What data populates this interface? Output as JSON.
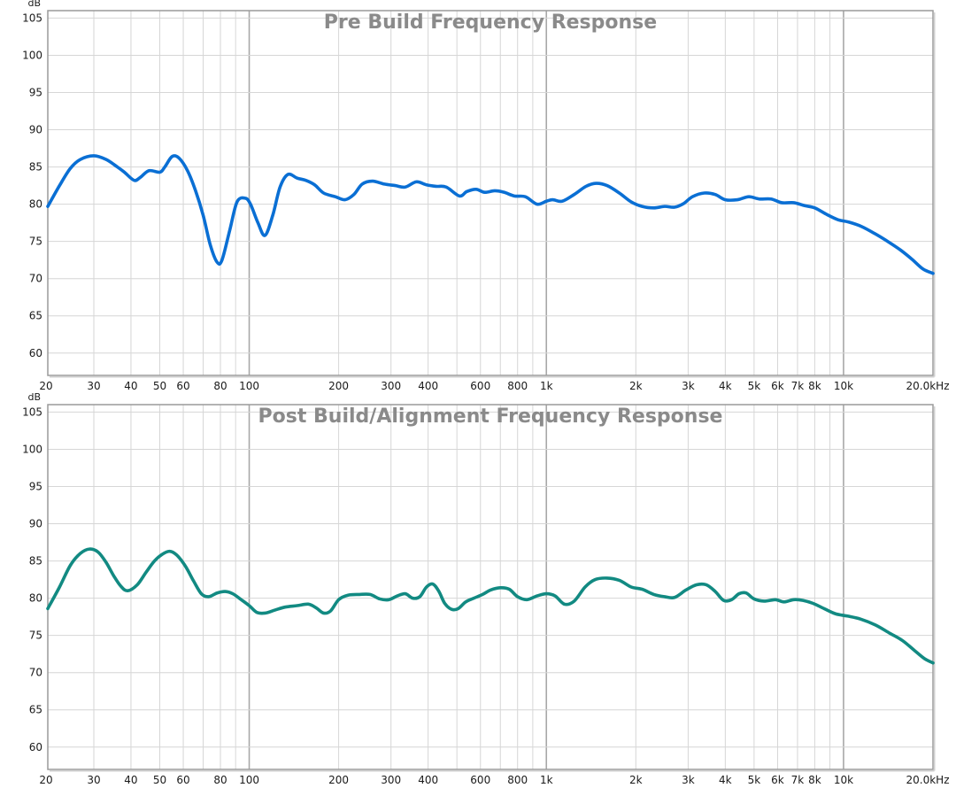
{
  "chart_data": [
    {
      "type": "line",
      "title": "Pre Build Frequency Response",
      "y_unit": "dB",
      "x_scale": "log",
      "xlim": [
        21,
        20000
      ],
      "ylim": [
        57,
        106
      ],
      "grid": true,
      "y_ticks": [
        60,
        65,
        70,
        75,
        80,
        85,
        90,
        95,
        100,
        105
      ],
      "x_ticks": [
        {
          "value": 20,
          "label": "20"
        },
        {
          "value": 30,
          "label": "30"
        },
        {
          "value": 40,
          "label": "40"
        },
        {
          "value": 50,
          "label": "50"
        },
        {
          "value": 60,
          "label": "60"
        },
        {
          "value": 80,
          "label": "80"
        },
        {
          "value": 100,
          "label": "100"
        },
        {
          "value": 200,
          "label": "200"
        },
        {
          "value": 300,
          "label": "300"
        },
        {
          "value": 400,
          "label": "400"
        },
        {
          "value": 600,
          "label": "600"
        },
        {
          "value": 800,
          "label": "800"
        },
        {
          "value": 1000,
          "label": "1k"
        },
        {
          "value": 2000,
          "label": "2k"
        },
        {
          "value": 3000,
          "label": "3k"
        },
        {
          "value": 4000,
          "label": "4k"
        },
        {
          "value": 5000,
          "label": "5k"
        },
        {
          "value": 6000,
          "label": "6k"
        },
        {
          "value": 7000,
          "label": "7k"
        },
        {
          "value": 8000,
          "label": "8k"
        },
        {
          "value": 10000,
          "label": "10k"
        },
        {
          "value": 20000,
          "label": "20.0kHz"
        }
      ],
      "series": [
        {
          "color": "#0a6fd4",
          "points": [
            [
              21,
              79.7
            ],
            [
              23,
              82.5
            ],
            [
              25,
              84.8
            ],
            [
              27,
              86.0
            ],
            [
              30,
              86.5
            ],
            [
              33,
              86.0
            ],
            [
              36,
              85.0
            ],
            [
              38,
              84.3
            ],
            [
              41,
              83.2
            ],
            [
              43,
              83.6
            ],
            [
              46,
              84.5
            ],
            [
              50,
              84.3
            ],
            [
              52,
              85.0
            ],
            [
              55,
              86.4
            ],
            [
              58,
              86.2
            ],
            [
              62,
              84.5
            ],
            [
              66,
              81.8
            ],
            [
              70,
              78.5
            ],
            [
              74,
              74.5
            ],
            [
              78,
              72.2
            ],
            [
              81,
              72.5
            ],
            [
              86,
              76.5
            ],
            [
              91,
              80.3
            ],
            [
              97,
              80.8
            ],
            [
              101,
              80.0
            ],
            [
              107,
              77.5
            ],
            [
              113,
              75.8
            ],
            [
              120,
              78.5
            ],
            [
              127,
              82.3
            ],
            [
              135,
              84.0
            ],
            [
              145,
              83.5
            ],
            [
              155,
              83.2
            ],
            [
              166,
              82.6
            ],
            [
              178,
              81.5
            ],
            [
              195,
              81.0
            ],
            [
              210,
              80.6
            ],
            [
              225,
              81.3
            ],
            [
              240,
              82.7
            ],
            [
              260,
              83.1
            ],
            [
              285,
              82.7
            ],
            [
              310,
              82.5
            ],
            [
              335,
              82.3
            ],
            [
              365,
              83.0
            ],
            [
              395,
              82.6
            ],
            [
              425,
              82.4
            ],
            [
              460,
              82.3
            ],
            [
              510,
              81.1
            ],
            [
              540,
              81.7
            ],
            [
              580,
              82.0
            ],
            [
              620,
              81.6
            ],
            [
              670,
              81.8
            ],
            [
              720,
              81.6
            ],
            [
              780,
              81.1
            ],
            [
              850,
              81.0
            ],
            [
              930,
              80.0
            ],
            [
              1000,
              80.4
            ],
            [
              1050,
              80.6
            ],
            [
              1130,
              80.4
            ],
            [
              1240,
              81.3
            ],
            [
              1360,
              82.4
            ],
            [
              1470,
              82.8
            ],
            [
              1600,
              82.5
            ],
            [
              1760,
              81.5
            ],
            [
              1930,
              80.3
            ],
            [
              2100,
              79.7
            ],
            [
              2300,
              79.5
            ],
            [
              2500,
              79.7
            ],
            [
              2700,
              79.6
            ],
            [
              2900,
              80.1
            ],
            [
              3100,
              81.0
            ],
            [
              3400,
              81.5
            ],
            [
              3700,
              81.3
            ],
            [
              4000,
              80.6
            ],
            [
              4400,
              80.6
            ],
            [
              4800,
              81.0
            ],
            [
              5200,
              80.7
            ],
            [
              5700,
              80.7
            ],
            [
              6200,
              80.2
            ],
            [
              6800,
              80.2
            ],
            [
              7400,
              79.8
            ],
            [
              8000,
              79.5
            ],
            [
              8800,
              78.6
            ],
            [
              9600,
              77.9
            ],
            [
              10400,
              77.6
            ],
            [
              11500,
              77.0
            ],
            [
              12800,
              76.0
            ],
            [
              14200,
              74.9
            ],
            [
              15600,
              73.8
            ],
            [
              17000,
              72.6
            ],
            [
              18500,
              71.3
            ],
            [
              20000,
              70.7
            ]
          ]
        }
      ]
    },
    {
      "type": "line",
      "title": "Post Build/Alignment Frequency Response",
      "y_unit": "dB",
      "x_scale": "log",
      "xlim": [
        21,
        20000
      ],
      "ylim": [
        57,
        106
      ],
      "grid": true,
      "y_ticks": [
        60,
        65,
        70,
        75,
        80,
        85,
        90,
        95,
        100,
        105
      ],
      "x_ticks": [
        {
          "value": 20,
          "label": "20"
        },
        {
          "value": 30,
          "label": "30"
        },
        {
          "value": 40,
          "label": "40"
        },
        {
          "value": 50,
          "label": "50"
        },
        {
          "value": 60,
          "label": "60"
        },
        {
          "value": 80,
          "label": "80"
        },
        {
          "value": 100,
          "label": "100"
        },
        {
          "value": 200,
          "label": "200"
        },
        {
          "value": 300,
          "label": "300"
        },
        {
          "value": 400,
          "label": "400"
        },
        {
          "value": 600,
          "label": "600"
        },
        {
          "value": 800,
          "label": "800"
        },
        {
          "value": 1000,
          "label": "1k"
        },
        {
          "value": 2000,
          "label": "2k"
        },
        {
          "value": 3000,
          "label": "3k"
        },
        {
          "value": 4000,
          "label": "4k"
        },
        {
          "value": 5000,
          "label": "5k"
        },
        {
          "value": 6000,
          "label": "6k"
        },
        {
          "value": 7000,
          "label": "7k"
        },
        {
          "value": 8000,
          "label": "8k"
        },
        {
          "value": 10000,
          "label": "10k"
        },
        {
          "value": 20000,
          "label": "20.0kHz"
        }
      ],
      "series": [
        {
          "color": "#128a82",
          "points": [
            [
              21,
              78.6
            ],
            [
              23,
              81.5
            ],
            [
              25,
              84.4
            ],
            [
              27,
              86.0
            ],
            [
              29,
              86.6
            ],
            [
              31,
              86.2
            ],
            [
              33,
              84.8
            ],
            [
              35,
              83.0
            ],
            [
              37,
              81.6
            ],
            [
              39,
              81.0
            ],
            [
              42,
              81.8
            ],
            [
              45,
              83.5
            ],
            [
              48,
              85.0
            ],
            [
              51,
              85.9
            ],
            [
              54,
              86.3
            ],
            [
              57,
              85.8
            ],
            [
              61,
              84.3
            ],
            [
              65,
              82.3
            ],
            [
              69,
              80.6
            ],
            [
              73,
              80.2
            ],
            [
              78,
              80.7
            ],
            [
              83,
              80.9
            ],
            [
              88,
              80.6
            ],
            [
              94,
              79.8
            ],
            [
              100,
              79.0
            ],
            [
              106,
              78.1
            ],
            [
              113,
              78.0
            ],
            [
              122,
              78.4
            ],
            [
              132,
              78.8
            ],
            [
              145,
              79.0
            ],
            [
              158,
              79.2
            ],
            [
              168,
              78.7
            ],
            [
              178,
              78.0
            ],
            [
              188,
              78.3
            ],
            [
              200,
              79.8
            ],
            [
              215,
              80.4
            ],
            [
              235,
              80.5
            ],
            [
              255,
              80.5
            ],
            [
              275,
              79.9
            ],
            [
              295,
              79.8
            ],
            [
              315,
              80.3
            ],
            [
              335,
              80.6
            ],
            [
              355,
              80.0
            ],
            [
              375,
              80.2
            ],
            [
              395,
              81.5
            ],
            [
              415,
              81.9
            ],
            [
              435,
              80.9
            ],
            [
              455,
              79.3
            ],
            [
              480,
              78.5
            ],
            [
              505,
              78.6
            ],
            [
              535,
              79.5
            ],
            [
              570,
              80.0
            ],
            [
              610,
              80.5
            ],
            [
              650,
              81.1
            ],
            [
              700,
              81.4
            ],
            [
              750,
              81.2
            ],
            [
              800,
              80.2
            ],
            [
              860,
              79.8
            ],
            [
              930,
              80.3
            ],
            [
              1000,
              80.6
            ],
            [
              1070,
              80.3
            ],
            [
              1150,
              79.2
            ],
            [
              1240,
              79.6
            ],
            [
              1350,
              81.5
            ],
            [
              1460,
              82.5
            ],
            [
              1600,
              82.7
            ],
            [
              1760,
              82.4
            ],
            [
              1930,
              81.5
            ],
            [
              2100,
              81.2
            ],
            [
              2300,
              80.5
            ],
            [
              2500,
              80.2
            ],
            [
              2700,
              80.1
            ],
            [
              2950,
              81.1
            ],
            [
              3200,
              81.8
            ],
            [
              3450,
              81.8
            ],
            [
              3700,
              80.9
            ],
            [
              3950,
              79.7
            ],
            [
              4200,
              79.8
            ],
            [
              4450,
              80.6
            ],
            [
              4700,
              80.7
            ],
            [
              5000,
              79.9
            ],
            [
              5400,
              79.6
            ],
            [
              5900,
              79.8
            ],
            [
              6300,
              79.5
            ],
            [
              6800,
              79.8
            ],
            [
              7300,
              79.7
            ],
            [
              7900,
              79.3
            ],
            [
              8600,
              78.6
            ],
            [
              9400,
              77.9
            ],
            [
              10300,
              77.6
            ],
            [
              11400,
              77.2
            ],
            [
              12800,
              76.4
            ],
            [
              14300,
              75.3
            ],
            [
              15800,
              74.3
            ],
            [
              17300,
              73.0
            ],
            [
              18700,
              71.9
            ],
            [
              20000,
              71.3
            ]
          ]
        }
      ]
    }
  ]
}
